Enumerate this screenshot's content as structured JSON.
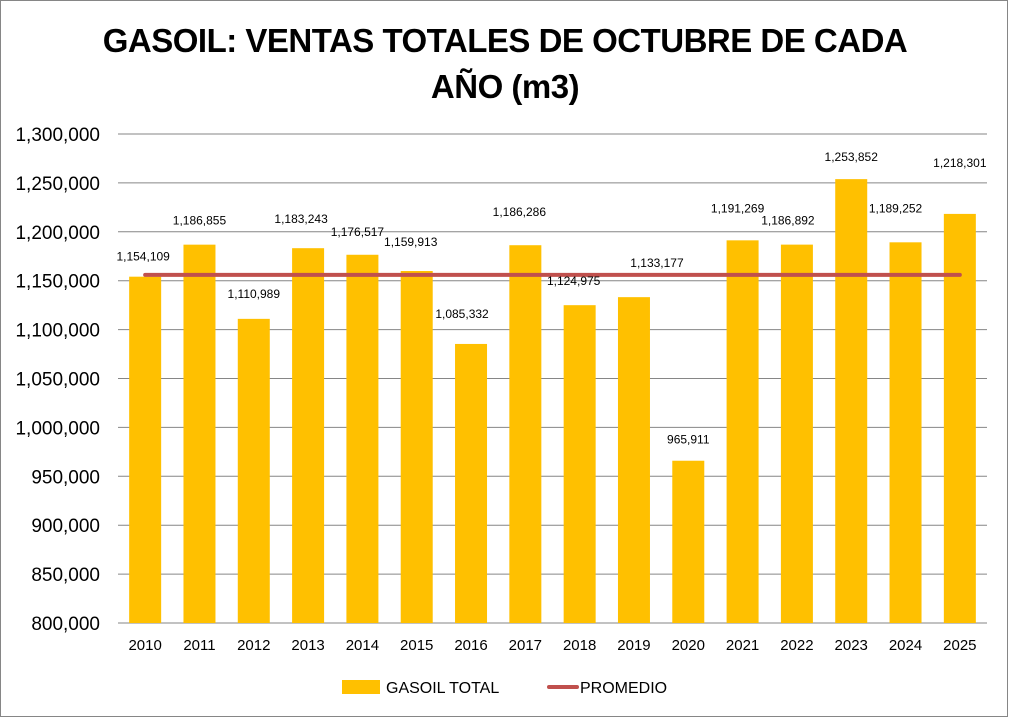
{
  "chart_data": {
    "type": "bar",
    "title_line1": "GASOIL: VENTAS TOTALES DE OCTUBRE DE CADA",
    "title_line2": "AÑO (m3)",
    "xlabel": "",
    "ylabel": "",
    "ylim": [
      800000,
      1300000
    ],
    "y_ticks": [
      800000,
      850000,
      900000,
      950000,
      1000000,
      1050000,
      1100000,
      1150000,
      1200000,
      1250000,
      1300000
    ],
    "y_tick_labels": [
      "800,000",
      "850,000",
      "900,000",
      "950,000",
      "1,000,000",
      "1,050,000",
      "1,100,000",
      "1,150,000",
      "1,200,000",
      "1,250,000",
      "1,300,000"
    ],
    "grid": true,
    "categories": [
      "2010",
      "2011",
      "2012",
      "2013",
      "2014",
      "2015",
      "2016",
      "2017",
      "2018",
      "2019",
      "2020",
      "2021",
      "2022",
      "2023",
      "2024",
      "2025"
    ],
    "series": [
      {
        "name": "GASOIL TOTAL",
        "type": "bar",
        "color": "#FFC000",
        "values": [
          1154109,
          1186855,
          1110989,
          1183243,
          1176517,
          1159913,
          1085332,
          1186286,
          1124975,
          1133177,
          965911,
          1191269,
          1186892,
          1253852,
          1189252,
          1218301
        ],
        "labels": [
          "1,154,109",
          "1,186,855",
          "1,110,989",
          "1,183,243",
          "1,176,517",
          "1,159,913",
          "1,085,332",
          "1,186,286",
          "1,124,975",
          "1,133,177",
          "965,911",
          "1,191,269",
          "1,186,892",
          "1,253,852",
          "1,189,252",
          "1,218,301"
        ]
      },
      {
        "name": "PROMEDIO",
        "type": "line",
        "color": "#C0504D",
        "value": 1156000
      }
    ],
    "legend_position": "bottom"
  }
}
